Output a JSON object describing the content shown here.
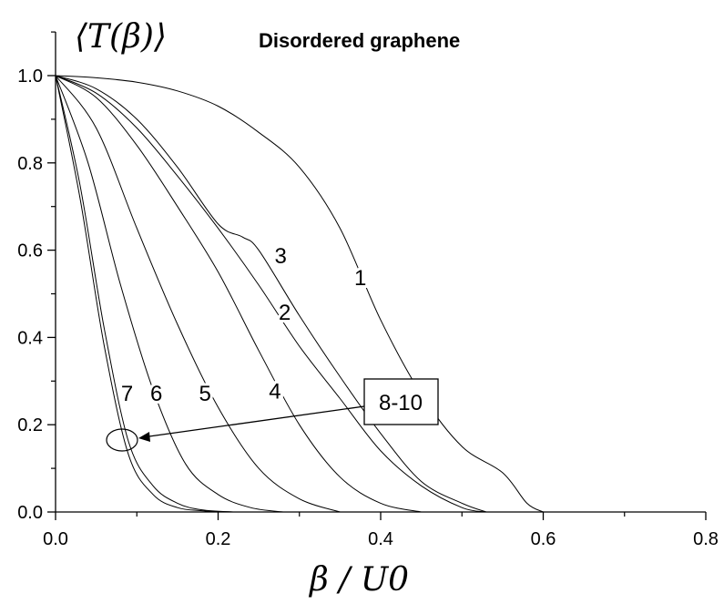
{
  "chart_data": {
    "type": "line",
    "title": "Disordered graphene",
    "ylabel": "⟨T(β)⟩",
    "xlabel": "β / U0",
    "xlim": [
      0.0,
      0.8
    ],
    "ylim": [
      0.0,
      1.0
    ],
    "x_ticks": [
      "0.0",
      "0.2",
      "0.4",
      "0.6",
      "0.8"
    ],
    "y_ticks": [
      "0.0",
      "0.2",
      "0.4",
      "0.6",
      "0.8",
      "1.0"
    ],
    "grid": false,
    "series": [
      {
        "name": "1",
        "x": [
          0,
          0.05,
          0.1,
          0.15,
          0.2,
          0.25,
          0.3,
          0.35,
          0.4,
          0.45,
          0.5,
          0.55,
          0.58,
          0.6
        ],
        "y": [
          1.0,
          0.995,
          0.985,
          0.965,
          0.93,
          0.87,
          0.79,
          0.65,
          0.44,
          0.27,
          0.15,
          0.09,
          0.02,
          0.0
        ]
      },
      {
        "name": "2",
        "x": [
          0,
          0.05,
          0.1,
          0.15,
          0.2,
          0.25,
          0.3,
          0.35,
          0.4,
          0.45,
          0.5,
          0.53
        ],
        "y": [
          1.0,
          0.96,
          0.88,
          0.77,
          0.65,
          0.52,
          0.38,
          0.26,
          0.14,
          0.06,
          0.01,
          0.0
        ]
      },
      {
        "name": "3",
        "x": [
          0,
          0.05,
          0.1,
          0.15,
          0.2,
          0.23,
          0.25,
          0.3,
          0.35,
          0.4,
          0.45,
          0.5,
          0.53
        ],
        "y": [
          1.0,
          0.97,
          0.9,
          0.79,
          0.66,
          0.63,
          0.6,
          0.45,
          0.31,
          0.18,
          0.07,
          0.02,
          0.0
        ]
      },
      {
        "name": "4",
        "x": [
          0,
          0.05,
          0.1,
          0.15,
          0.2,
          0.25,
          0.3,
          0.35,
          0.4,
          0.45
        ],
        "y": [
          1.0,
          0.95,
          0.84,
          0.7,
          0.55,
          0.37,
          0.2,
          0.08,
          0.02,
          0.0
        ]
      },
      {
        "name": "5",
        "x": [
          0,
          0.05,
          0.1,
          0.15,
          0.2,
          0.25,
          0.3,
          0.35
        ],
        "y": [
          1.0,
          0.88,
          0.65,
          0.43,
          0.24,
          0.1,
          0.03,
          0.0
        ]
      },
      {
        "name": "6",
        "x": [
          0,
          0.04,
          0.08,
          0.12,
          0.16,
          0.2,
          0.24,
          0.28
        ],
        "y": [
          1.0,
          0.8,
          0.52,
          0.28,
          0.11,
          0.04,
          0.01,
          0.0
        ]
      },
      {
        "name": "7",
        "x": [
          0,
          0.03,
          0.06,
          0.09,
          0.12,
          0.15,
          0.18,
          0.22
        ],
        "y": [
          1.0,
          0.75,
          0.42,
          0.16,
          0.06,
          0.02,
          0.005,
          0.0
        ]
      },
      {
        "name": "8-10",
        "x": [
          0,
          0.03,
          0.06,
          0.09,
          0.12,
          0.15,
          0.18,
          0.21
        ],
        "y": [
          1.0,
          0.72,
          0.38,
          0.13,
          0.04,
          0.01,
          0.003,
          0.0
        ]
      }
    ],
    "annotations": [
      {
        "text": "1",
        "x": 0.375,
        "y": 0.52
      },
      {
        "text": "2",
        "x": 0.282,
        "y": 0.44
      },
      {
        "text": "3",
        "x": 0.277,
        "y": 0.57
      },
      {
        "text": "4",
        "x": 0.27,
        "y": 0.26
      },
      {
        "text": "5",
        "x": 0.184,
        "y": 0.255
      },
      {
        "text": "6",
        "x": 0.124,
        "y": 0.255
      },
      {
        "text": "7",
        "x": 0.088,
        "y": 0.255
      },
      {
        "text": "8-10",
        "x": 0.4,
        "y": 0.25,
        "boxed": true
      }
    ]
  }
}
